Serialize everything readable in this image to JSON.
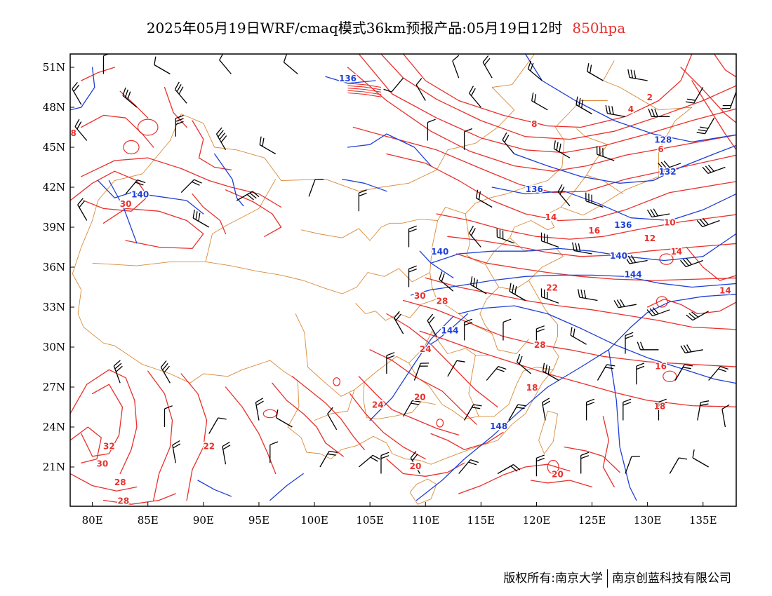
{
  "title": {
    "text": "2025年05月19日WRF/cmaq模式36km预报产品:05月19日12时",
    "level": "850hpa"
  },
  "colors": {
    "temperature": "#e8302c",
    "geopotential": "#1f3fd6",
    "border": "#d98a3a",
    "wind": "#000000"
  },
  "map": {
    "lat_labels": [
      "51N",
      "48N",
      "45N",
      "42N",
      "39N",
      "36N",
      "33N",
      "30N",
      "27N",
      "24N",
      "21N"
    ],
    "lon_labels": [
      "80E",
      "85E",
      "90E",
      "95E",
      "100E",
      "105E",
      "110E",
      "115E",
      "120E",
      "125E",
      "130E",
      "135E"
    ],
    "temperature_labels": [
      {
        "text": "2",
        "lon": 130.2,
        "lat": 48.8
      },
      {
        "text": "4",
        "lon": 128.5,
        "lat": 47.9
      },
      {
        "text": "8",
        "lon": 119.8,
        "lat": 46.8
      },
      {
        "text": "8",
        "lon": 78.3,
        "lat": 46.1
      },
      {
        "text": "6",
        "lon": 131.2,
        "lat": 44.9
      },
      {
        "text": "30",
        "lon": 83.0,
        "lat": 40.8
      },
      {
        "text": "14",
        "lon": 121.3,
        "lat": 39.8
      },
      {
        "text": "16",
        "lon": 125.2,
        "lat": 38.8
      },
      {
        "text": "10",
        "lon": 132.0,
        "lat": 39.4
      },
      {
        "text": "12",
        "lon": 130.2,
        "lat": 38.2
      },
      {
        "text": "14",
        "lon": 132.6,
        "lat": 37.2
      },
      {
        "text": "22",
        "lon": 121.4,
        "lat": 34.5
      },
      {
        "text": "14",
        "lon": 137.0,
        "lat": 34.3
      },
      {
        "text": "30",
        "lon": 109.5,
        "lat": 33.9
      },
      {
        "text": "28",
        "lon": 111.5,
        "lat": 33.5
      },
      {
        "text": "24",
        "lon": 110.0,
        "lat": 29.9
      },
      {
        "text": "28",
        "lon": 120.3,
        "lat": 30.2
      },
      {
        "text": "16",
        "lon": 131.2,
        "lat": 28.6
      },
      {
        "text": "18",
        "lon": 119.6,
        "lat": 27.0
      },
      {
        "text": "20",
        "lon": 109.5,
        "lat": 26.3
      },
      {
        "text": "24",
        "lon": 105.7,
        "lat": 25.7
      },
      {
        "text": "18",
        "lon": 131.1,
        "lat": 25.6
      },
      {
        "text": "32",
        "lon": 81.5,
        "lat": 22.6
      },
      {
        "text": "22",
        "lon": 90.5,
        "lat": 22.6
      },
      {
        "text": "30",
        "lon": 80.9,
        "lat": 21.3
      },
      {
        "text": "28",
        "lon": 82.5,
        "lat": 19.9
      },
      {
        "text": "20",
        "lon": 109.1,
        "lat": 21.1
      },
      {
        "text": "20",
        "lon": 121.9,
        "lat": 20.5
      },
      {
        "text": "28",
        "lon": 82.8,
        "lat": 18.5
      }
    ],
    "height_labels": [
      {
        "text": "136",
        "lon": 103.0,
        "lat": 50.2
      },
      {
        "text": "140",
        "lon": 84.3,
        "lat": 41.5
      },
      {
        "text": "128",
        "lon": 131.4,
        "lat": 45.6
      },
      {
        "text": "132",
        "lon": 131.8,
        "lat": 43.2
      },
      {
        "text": "136",
        "lon": 119.8,
        "lat": 41.9
      },
      {
        "text": "136",
        "lon": 127.8,
        "lat": 39.2
      },
      {
        "text": "140",
        "lon": 111.3,
        "lat": 37.2
      },
      {
        "text": "140",
        "lon": 127.4,
        "lat": 36.9
      },
      {
        "text": "144",
        "lon": 128.7,
        "lat": 35.5
      },
      {
        "text": "144",
        "lon": 112.2,
        "lat": 31.3
      },
      {
        "text": "148",
        "lon": 116.6,
        "lat": 24.1
      }
    ]
  },
  "credit": {
    "left": "版权所有:南京大学",
    "right": "南京创蓝科技有限公司"
  }
}
